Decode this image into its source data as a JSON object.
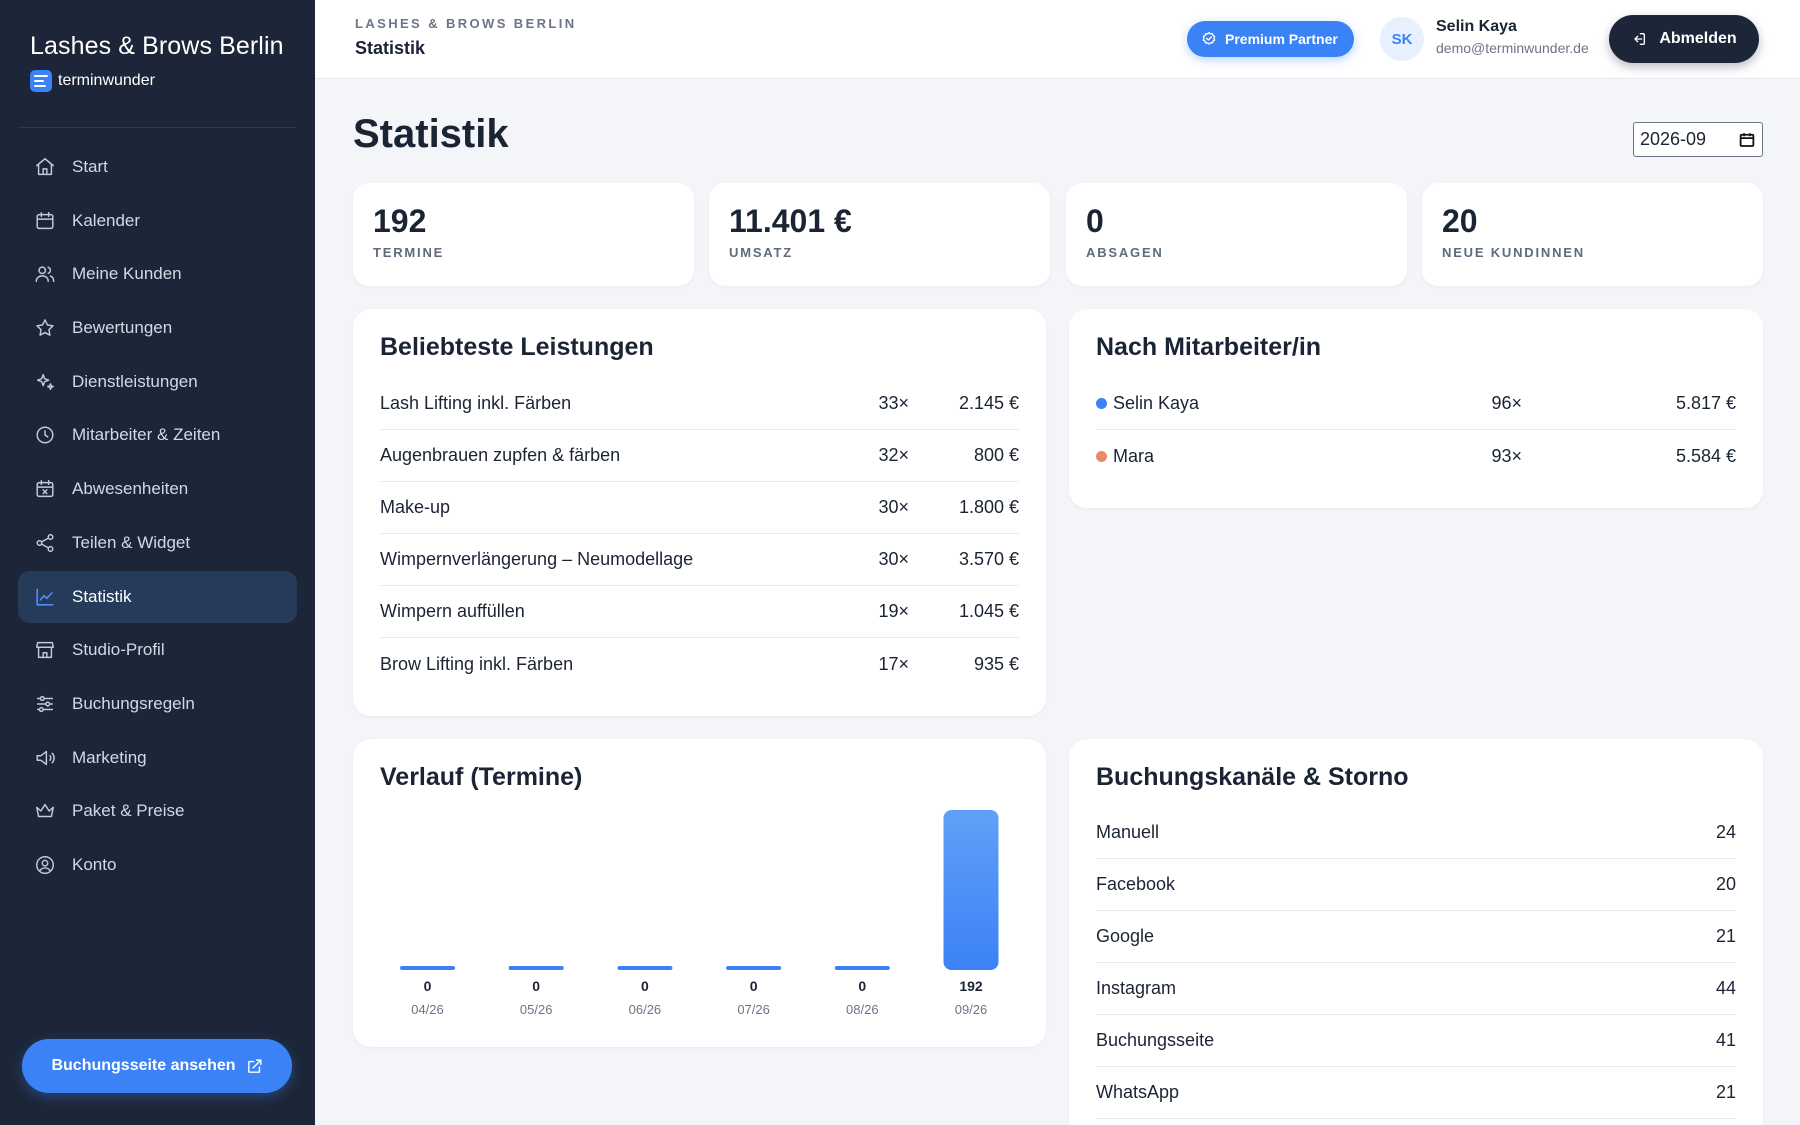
{
  "sidebar": {
    "brand_title": "Lashes & Brows Berlin",
    "brand_sub": "terminwunder",
    "items": [
      {
        "label": "Start",
        "icon": "home-icon"
      },
      {
        "label": "Kalender",
        "icon": "calendar-icon"
      },
      {
        "label": "Meine Kunden",
        "icon": "users-icon"
      },
      {
        "label": "Bewertungen",
        "icon": "star-icon"
      },
      {
        "label": "Dienstleistungen",
        "icon": "sparkles-icon"
      },
      {
        "label": "Mitarbeiter & Zeiten",
        "icon": "clock-icon"
      },
      {
        "label": "Abwesenheiten",
        "icon": "calendar-x-icon"
      },
      {
        "label": "Teilen & Widget",
        "icon": "share-icon"
      },
      {
        "label": "Statistik",
        "icon": "chart-line-icon",
        "active": true
      },
      {
        "label": "Studio-Profil",
        "icon": "store-icon"
      },
      {
        "label": "Buchungsregeln",
        "icon": "sliders-icon"
      },
      {
        "label": "Marketing",
        "icon": "megaphone-icon"
      },
      {
        "label": "Paket & Preise",
        "icon": "crown-icon"
      },
      {
        "label": "Konto",
        "icon": "user-circle-icon"
      }
    ],
    "cta_label": "Buchungsseite ansehen"
  },
  "topbar": {
    "kicker": "LASHES & BROWS BERLIN",
    "title": "Statistik",
    "premium_label": "Premium Partner",
    "avatar_initials": "SK",
    "user_name": "Selin Kaya",
    "user_email": "demo@terminwunder.de",
    "logout_label": "Abmelden"
  },
  "main": {
    "title": "Statistik",
    "month_value": "2026-09",
    "kpis": [
      {
        "value": "192",
        "label": "TERMINE"
      },
      {
        "value": "11.401 €",
        "label": "UMSATZ"
      },
      {
        "value": "0",
        "label": "ABSAGEN"
      },
      {
        "value": "20",
        "label": "NEUE KUNDINNEN"
      }
    ],
    "services": {
      "title": "Beliebteste Leistungen",
      "rows": [
        {
          "name": "Lash Lifting inkl. Färben",
          "count": "33×",
          "amount": "2.145 €"
        },
        {
          "name": "Augenbrauen zupfen & färben",
          "count": "32×",
          "amount": "800 €"
        },
        {
          "name": "Make-up",
          "count": "30×",
          "amount": "1.800 €"
        },
        {
          "name": "Wimpernverlängerung – Neumodellage",
          "count": "30×",
          "amount": "3.570 €"
        },
        {
          "name": "Wimpern auffüllen",
          "count": "19×",
          "amount": "1.045 €"
        },
        {
          "name": "Brow Lifting inkl. Färben",
          "count": "17×",
          "amount": "935 €"
        }
      ]
    },
    "staff": {
      "title": "Nach Mitarbeiter/in",
      "rows": [
        {
          "name": "Selin Kaya",
          "count": "96×",
          "amount": "5.817 €",
          "color": "#3b82f6"
        },
        {
          "name": "Mara",
          "count": "93×",
          "amount": "5.584 €",
          "color": "#e8896b"
        }
      ]
    },
    "trend": {
      "title": "Verlauf (Termine)"
    },
    "channels": {
      "title": "Buchungskanäle & Storno",
      "rows": [
        {
          "name": "Manuell",
          "value": "24"
        },
        {
          "name": "Facebook",
          "value": "20"
        },
        {
          "name": "Google",
          "value": "21"
        },
        {
          "name": "Instagram",
          "value": "44"
        },
        {
          "name": "Buchungsseite",
          "value": "41"
        },
        {
          "name": "WhatsApp",
          "value": "21"
        }
      ]
    }
  },
  "chart_data": {
    "type": "bar",
    "title": "Verlauf (Termine)",
    "categories": [
      "04/26",
      "05/26",
      "06/26",
      "07/26",
      "08/26",
      "09/26"
    ],
    "values": [
      0,
      0,
      0,
      0,
      0,
      192
    ],
    "color": "#3b82f6"
  }
}
